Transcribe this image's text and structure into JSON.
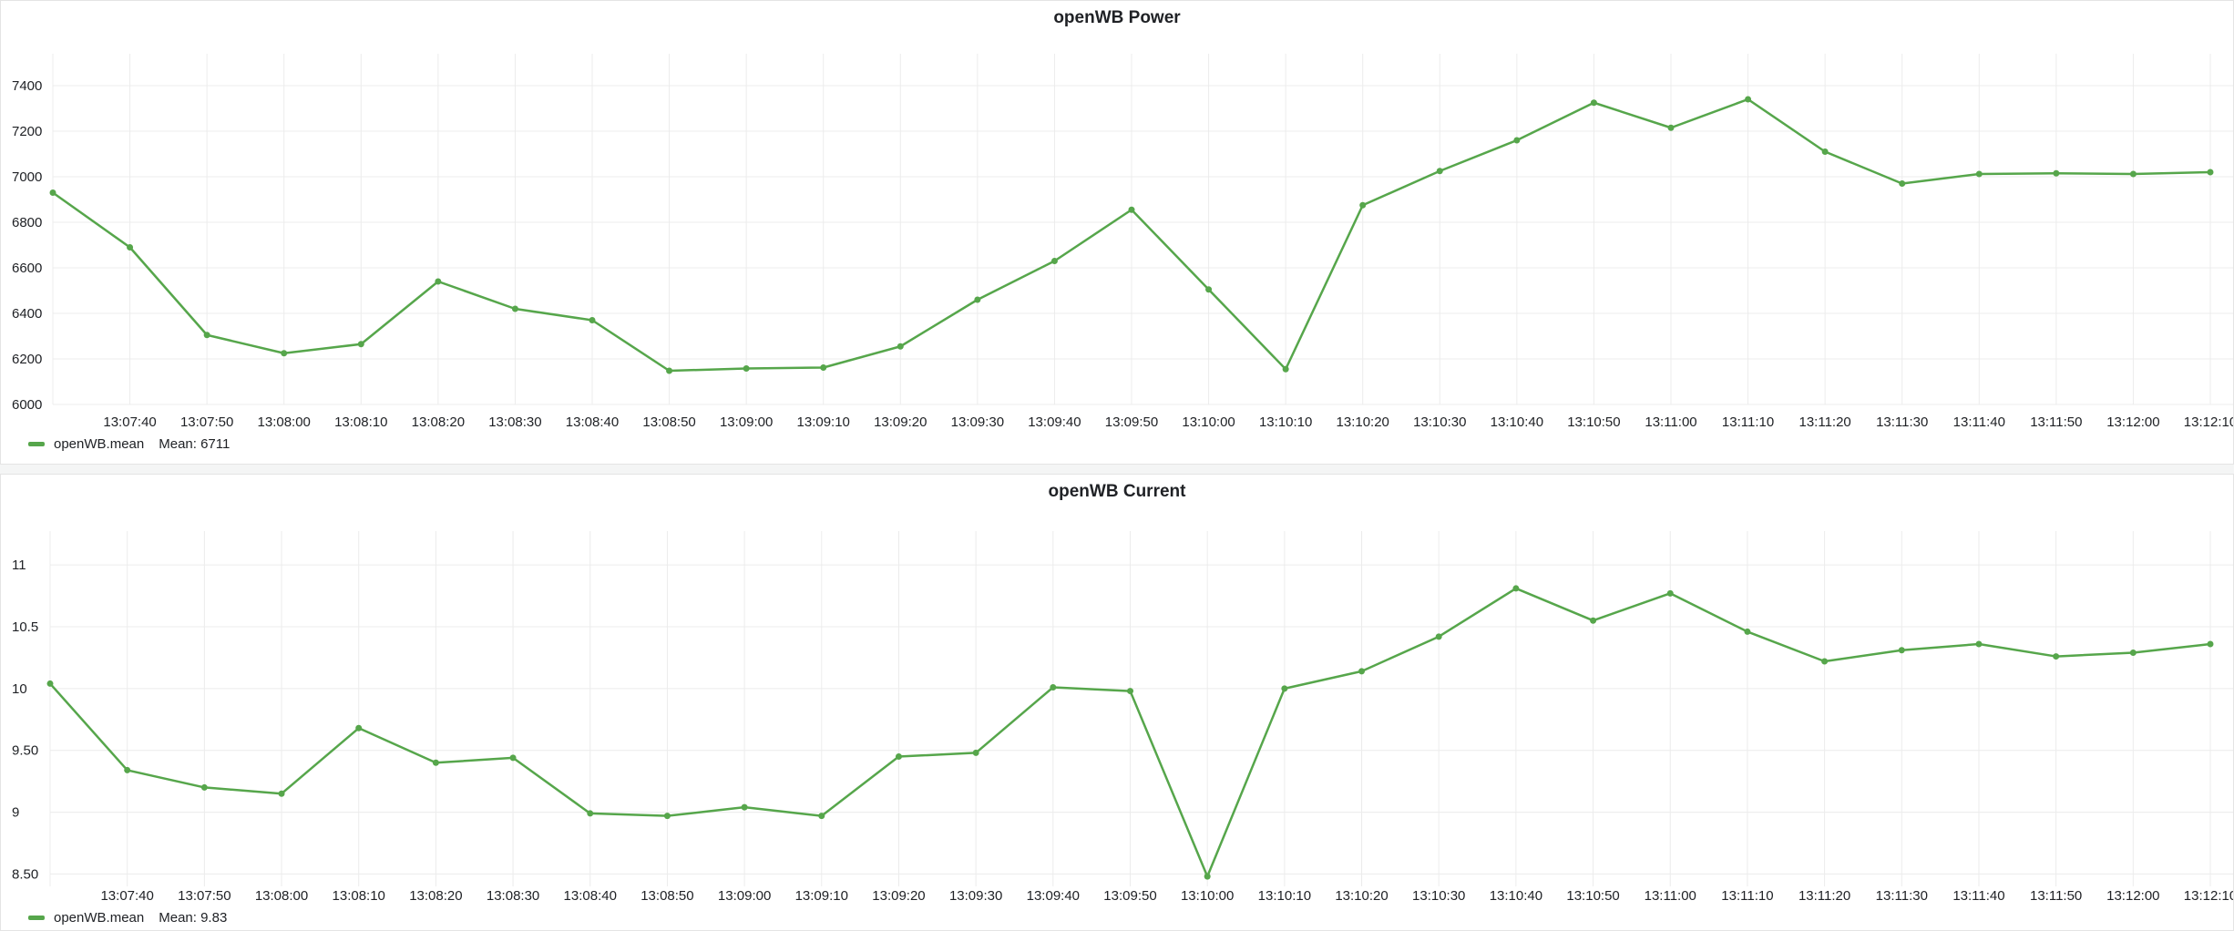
{
  "chart_data": [
    {
      "id": "power",
      "type": "line",
      "title": "openWB Power",
      "xlabel": "",
      "ylabel": "",
      "color": "#56a64b",
      "x": [
        "13:07:30",
        "13:07:40",
        "13:07:50",
        "13:08:00",
        "13:08:10",
        "13:08:20",
        "13:08:30",
        "13:08:40",
        "13:08:50",
        "13:09:00",
        "13:09:10",
        "13:09:20",
        "13:09:30",
        "13:09:40",
        "13:09:50",
        "13:10:00",
        "13:10:10",
        "13:10:20",
        "13:10:30",
        "13:10:40",
        "13:10:50",
        "13:11:00",
        "13:11:10",
        "13:11:20",
        "13:11:30",
        "13:11:40",
        "13:11:50",
        "13:12:00",
        "13:12:10"
      ],
      "x_tick_labels": [
        "13:07:40",
        "13:07:50",
        "13:08:00",
        "13:08:10",
        "13:08:20",
        "13:08:30",
        "13:08:40",
        "13:08:50",
        "13:09:00",
        "13:09:10",
        "13:09:20",
        "13:09:30",
        "13:09:40",
        "13:09:50",
        "13:10:00",
        "13:10:10",
        "13:10:20",
        "13:10:30",
        "13:10:40",
        "13:10:50",
        "13:11:00",
        "13:11:10",
        "13:11:20",
        "13:11:30",
        "13:11:40",
        "13:11:50",
        "13:12:00",
        "13:12:10"
      ],
      "y_tick_labels": [
        "6000",
        "6200",
        "6400",
        "6600",
        "6800",
        "7000",
        "7200",
        "7400"
      ],
      "ylim": [
        6000,
        7500
      ],
      "series": [
        {
          "name": "openWB.mean",
          "values": [
            6930,
            6690,
            6305,
            6225,
            6265,
            6540,
            6420,
            6370,
            6148,
            6158,
            6162,
            6255,
            6460,
            6630,
            6855,
            6505,
            6155,
            6875,
            7025,
            7160,
            7325,
            7215,
            7340,
            7110,
            6970,
            7012,
            7015,
            7012,
            7020
          ]
        }
      ],
      "legend": {
        "label": "openWB.mean",
        "stat": "Mean: 6711",
        "position": "bottom-left"
      },
      "grid": true
    },
    {
      "id": "current",
      "type": "line",
      "title": "openWB Current",
      "xlabel": "",
      "ylabel": "",
      "color": "#56a64b",
      "x": [
        "13:07:30",
        "13:07:40",
        "13:07:50",
        "13:08:00",
        "13:08:10",
        "13:08:20",
        "13:08:30",
        "13:08:40",
        "13:08:50",
        "13:09:00",
        "13:09:10",
        "13:09:20",
        "13:09:30",
        "13:09:40",
        "13:09:50",
        "13:10:00",
        "13:10:10",
        "13:10:20",
        "13:10:30",
        "13:10:40",
        "13:10:50",
        "13:11:00",
        "13:11:10",
        "13:11:20",
        "13:11:30",
        "13:11:40",
        "13:11:50",
        "13:12:00",
        "13:12:10"
      ],
      "x_tick_labels": [
        "13:07:40",
        "13:07:50",
        "13:08:00",
        "13:08:10",
        "13:08:20",
        "13:08:30",
        "13:08:40",
        "13:08:50",
        "13:09:00",
        "13:09:10",
        "13:09:20",
        "13:09:30",
        "13:09:40",
        "13:09:50",
        "13:10:00",
        "13:10:10",
        "13:10:20",
        "13:10:30",
        "13:10:40",
        "13:10:50",
        "13:11:00",
        "13:11:10",
        "13:11:20",
        "13:11:30",
        "13:11:40",
        "13:11:50",
        "13:12:00",
        "13:12:10"
      ],
      "y_tick_labels": [
        "8.50",
        "9",
        "9.50",
        "10",
        "10.5",
        "11"
      ],
      "ylim": [
        8.4,
        11.2
      ],
      "series": [
        {
          "name": "openWB.mean",
          "values": [
            10.04,
            9.34,
            9.2,
            9.15,
            9.68,
            9.4,
            9.44,
            8.99,
            8.97,
            9.04,
            8.97,
            9.45,
            9.48,
            10.01,
            9.98,
            8.48,
            10.0,
            10.14,
            10.42,
            10.81,
            10.55,
            10.77,
            10.46,
            10.22,
            10.31,
            10.36,
            10.26,
            10.29,
            10.36
          ]
        }
      ],
      "legend": {
        "label": "openWB.mean",
        "stat": "Mean: 9.83",
        "position": "bottom-left"
      },
      "grid": true
    }
  ]
}
